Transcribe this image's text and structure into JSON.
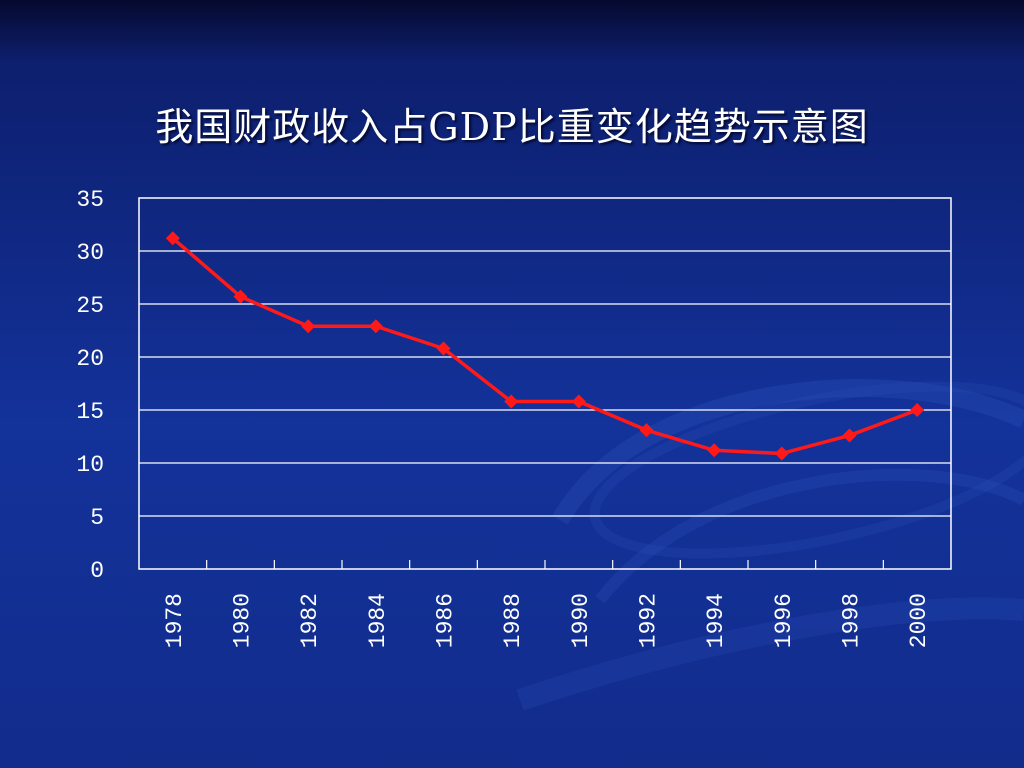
{
  "slide": {
    "title": "我国财政收入占GDP比重变化趋势示意图"
  },
  "colors": {
    "background": "#13329a",
    "grid": "#ffffff",
    "line": "#ff1a1a",
    "text": "#ffffff"
  },
  "chart_data": {
    "type": "line",
    "title": "我国财政收入占GDP比重变化趋势示意图",
    "xlabel": "",
    "ylabel": "",
    "categories": [
      "1978",
      "1980",
      "1982",
      "1984",
      "1986",
      "1988",
      "1990",
      "1992",
      "1994",
      "1996",
      "1998",
      "2000"
    ],
    "series": [
      {
        "values": [
          31.2,
          25.7,
          22.9,
          22.9,
          20.8,
          15.8,
          15.8,
          13.1,
          11.2,
          10.9,
          12.6,
          15.0
        ]
      }
    ],
    "ylim": [
      0,
      35
    ],
    "yticks": [
      "0",
      "5",
      "10",
      "15",
      "20",
      "25",
      "30",
      "35"
    ],
    "grid": true,
    "legend": "none"
  }
}
